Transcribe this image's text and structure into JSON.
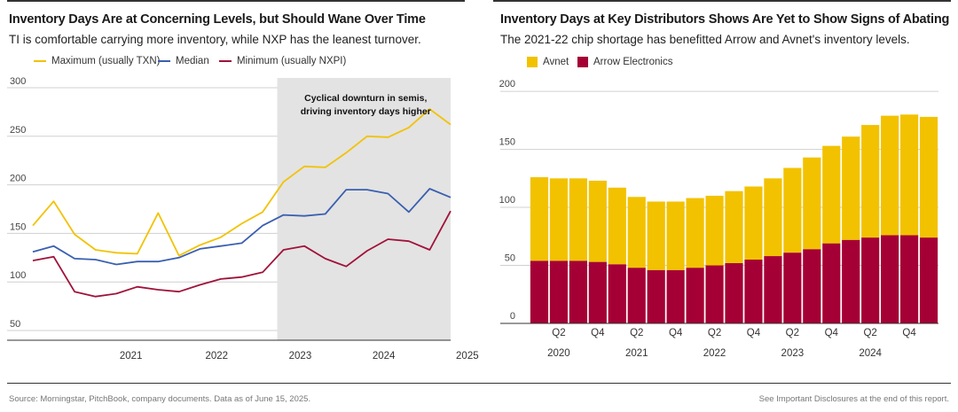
{
  "left": {
    "title": "Inventory Days Are at Concerning Levels, but Should Wane Over Time",
    "subtitle": "TI is comfortable carrying more inventory, while NXP has the leanest turnover.",
    "annotation_line1": "Cyclical downturn in semis,",
    "annotation_line2": "driving inventory days higher"
  },
  "right": {
    "title": "Inventory Days at Key Distributors Shows Are Yet to Show Signs of Abating",
    "subtitle": "The 2021-22 chip shortage has benefitted Arrow and Avnet's inventory levels."
  },
  "footer": {
    "source": "Source: Morningstar, PitchBook, company documents. Data as of June 15, 2025.",
    "disclosure": "See Important Disclosures at the end of this report."
  },
  "colors": {
    "max": "#f2c200",
    "median": "#3a5fb0",
    "min": "#a0123a",
    "avnet": "#f2c200",
    "arrow": "#a50035",
    "shade": "#e3e3e3",
    "grid": "#d0d0d0"
  },
  "chart_data": [
    {
      "type": "line",
      "title": "Inventory Days Are at Concerning Levels, but Should Wane Over Time",
      "y_ticks": [
        50,
        100,
        150,
        200,
        250,
        300
      ],
      "ylim": [
        40,
        310
      ],
      "x_tick_labels": [
        "2021",
        "2022",
        "2023",
        "2024",
        "2025"
      ],
      "x_tick_index": [
        4.7,
        8.8,
        12.8,
        16.8,
        20.8
      ],
      "shaded_start_index": 11.7,
      "shaded_label": "Cyclical downturn in semis, driving inventory days higher",
      "series": [
        {
          "name": "Maximum (usually TXN)",
          "values": [
            158,
            183,
            149,
            133,
            130,
            129,
            171,
            127,
            138,
            146,
            160,
            172,
            203,
            219,
            218,
            233,
            250,
            249,
            259,
            278,
            262
          ]
        },
        {
          "name": "Median",
          "values": [
            131,
            137,
            124,
            123,
            118,
            121,
            121,
            125,
            134,
            137,
            140,
            158,
            169,
            168,
            170,
            195,
            195,
            191,
            172,
            196,
            187
          ]
        },
        {
          "name": "Minimum (usually NXPI)",
          "values": [
            122,
            126,
            90,
            85,
            88,
            95,
            92,
            90,
            97,
            103,
            105,
            110,
            133,
            137,
            124,
            116,
            132,
            144,
            142,
            133,
            173
          ]
        }
      ]
    },
    {
      "type": "bar",
      "stacked": true,
      "title": "Inventory Days at Key Distributors Shows Are Yet to Show Signs of Abating",
      "categories": [
        "Q1 2020",
        "Q2 2020",
        "Q3 2020",
        "Q4 2020",
        "Q1 2021",
        "Q2 2021",
        "Q3 2021",
        "Q4 2021",
        "Q1 2022",
        "Q2 2022",
        "Q3 2022",
        "Q4 2022",
        "Q1 2023",
        "Q2 2023",
        "Q3 2023",
        "Q4 2023",
        "Q1 2024",
        "Q2 2024",
        "Q3 2024",
        "Q4 2024",
        "Q1 2025"
      ],
      "x_tick_labels": [
        "Q2",
        "Q4",
        "Q2",
        "Q4",
        "Q2",
        "Q4",
        "Q2",
        "Q4",
        "Q2",
        "Q4"
      ],
      "x_tick_positions": [
        1,
        3,
        5,
        7,
        9,
        11,
        13,
        15,
        17,
        19
      ],
      "x_year_labels": [
        "2020",
        "2021",
        "2022",
        "2023",
        "2024"
      ],
      "x_year_positions": [
        1,
        5,
        9,
        13,
        17
      ],
      "y_ticks": [
        0,
        50,
        100,
        150,
        200
      ],
      "ylim": [
        0,
        210
      ],
      "series": [
        {
          "name": "Arrow Electronics",
          "values": [
            54,
            54,
            54,
            53,
            51,
            48,
            46,
            46,
            48,
            50,
            52,
            55,
            58,
            61,
            64,
            69,
            72,
            74,
            76,
            76,
            74
          ]
        },
        {
          "name": "Avnet",
          "values": [
            72,
            71,
            71,
            70,
            66,
            61,
            59,
            59,
            60,
            60,
            62,
            63,
            67,
            73,
            79,
            84,
            89,
            97,
            103,
            104,
            104
          ]
        }
      ]
    }
  ]
}
